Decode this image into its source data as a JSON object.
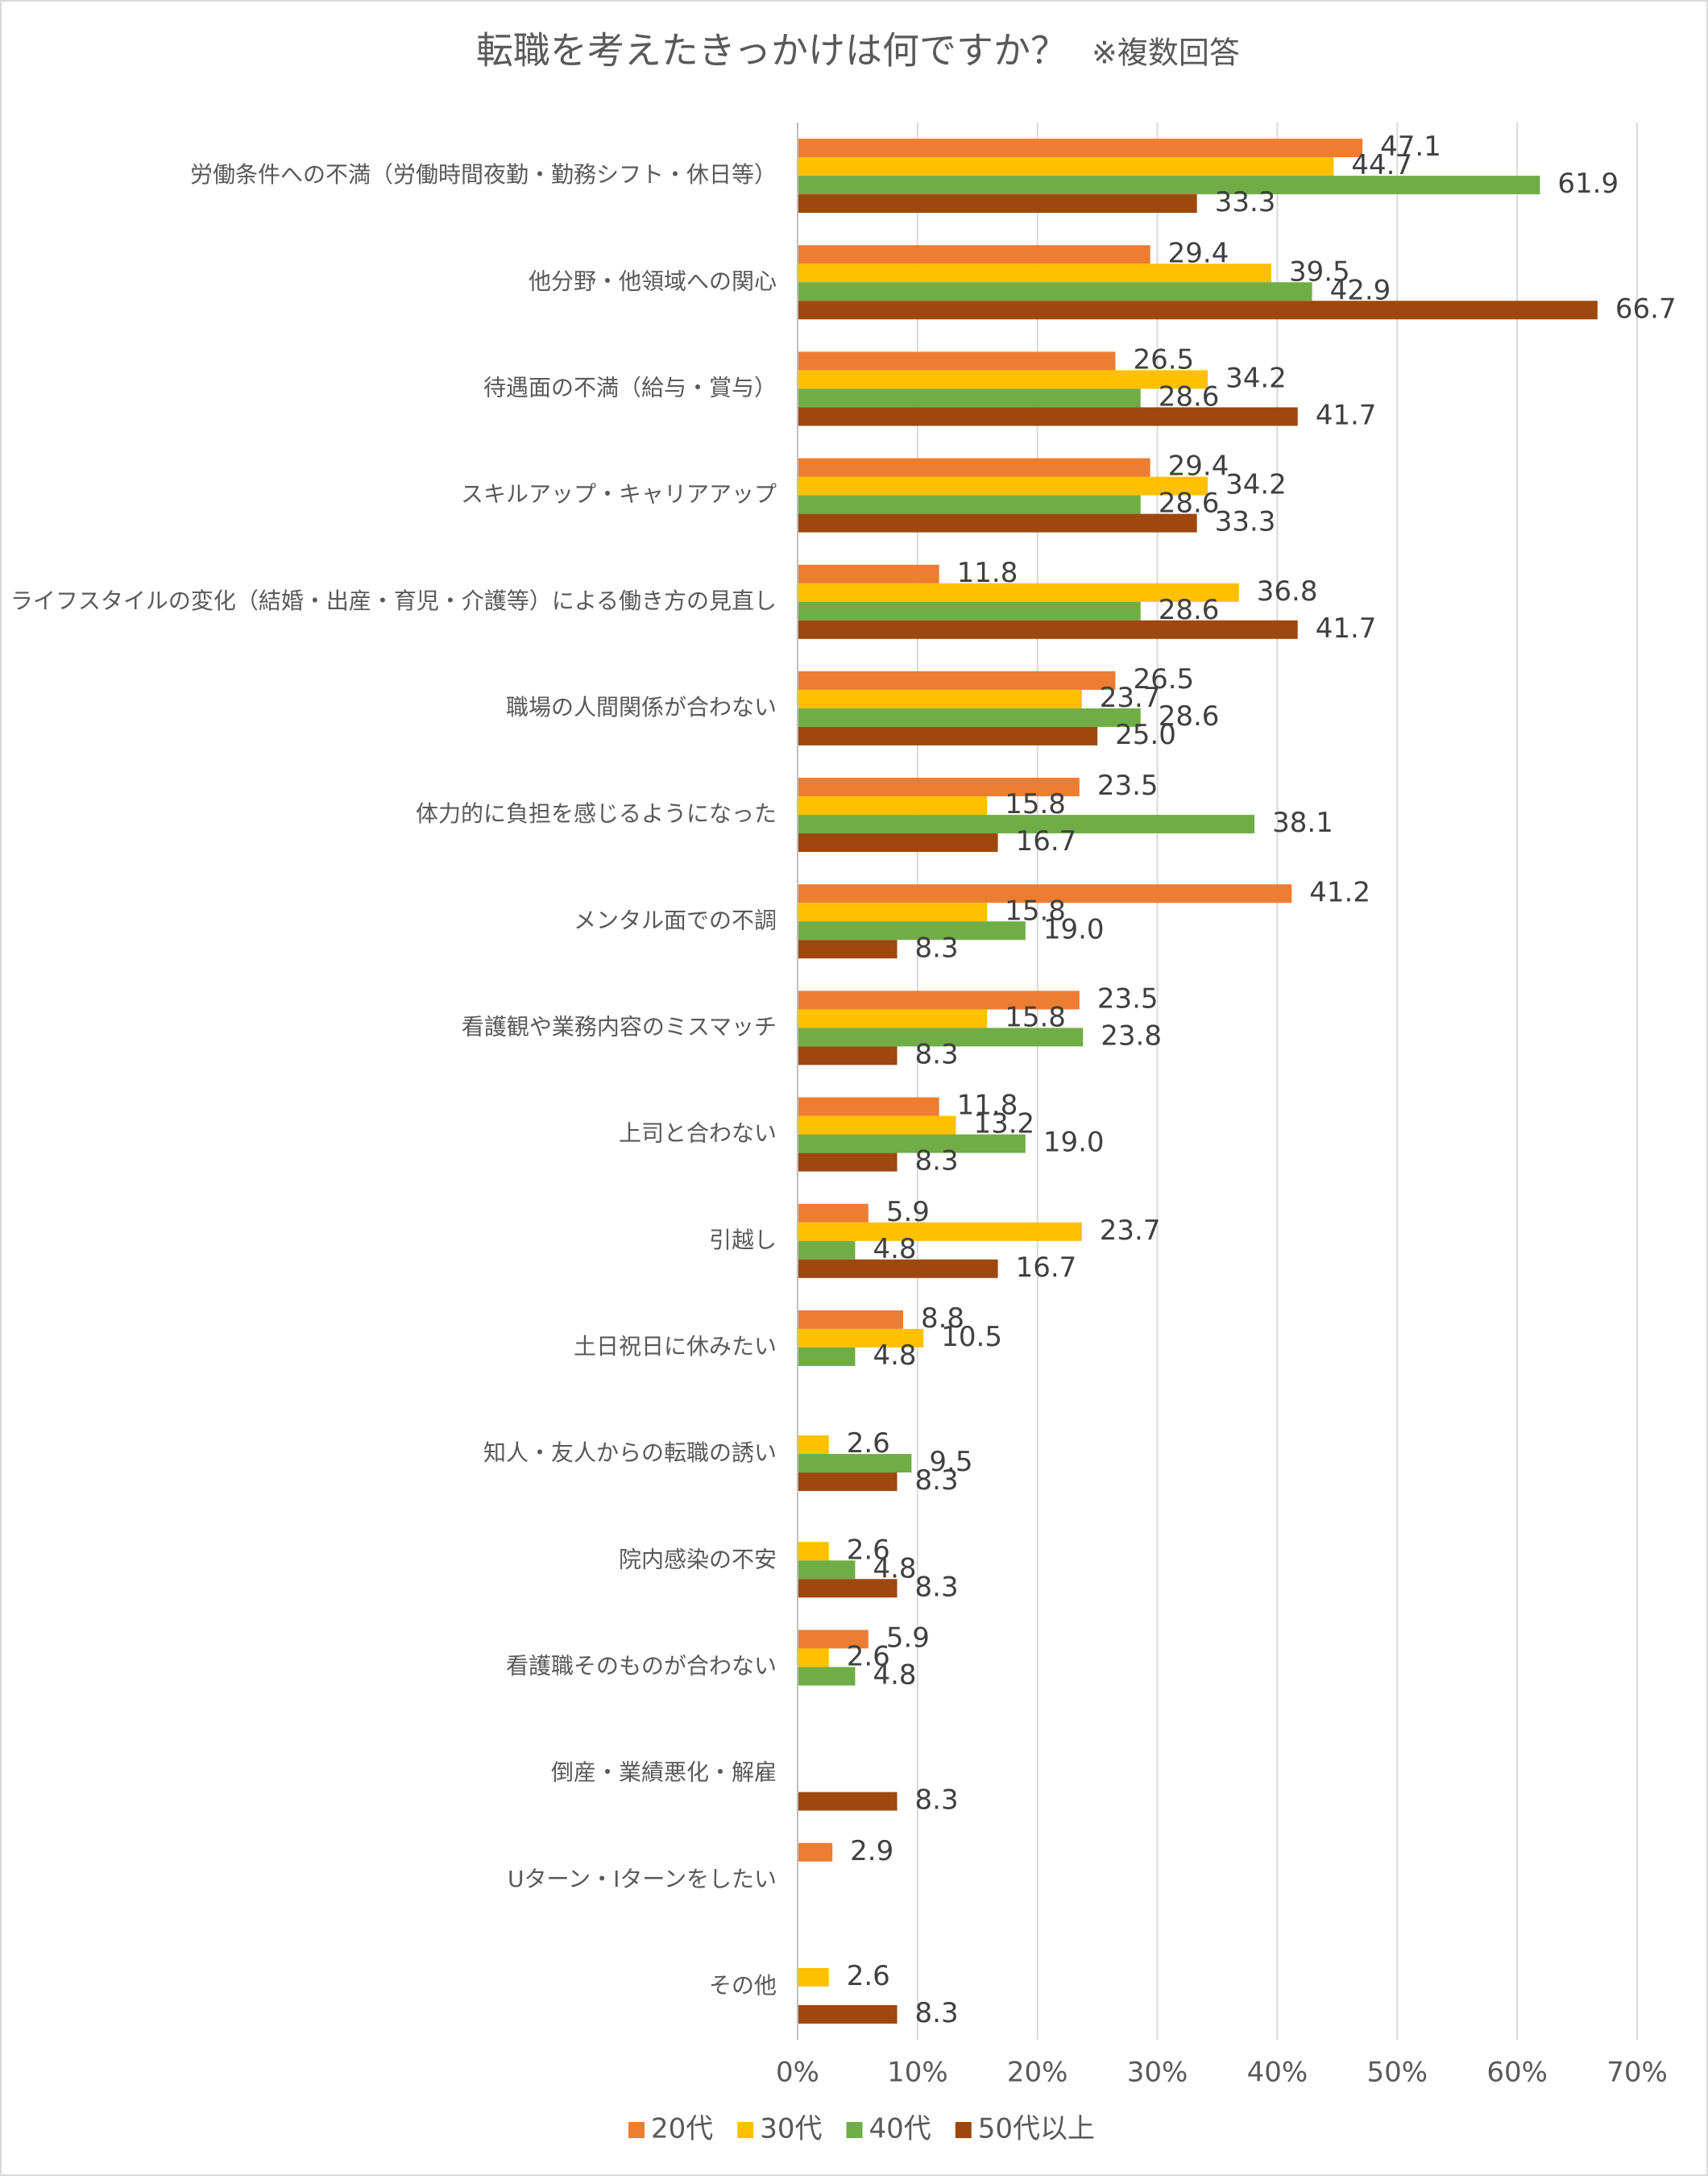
{
  "chart_data": {
    "type": "hbar",
    "title": "転職を考えたきっかけは何ですか？",
    "subtitle": "※複数回答",
    "categories": [
      "労働条件への不満（労働時間夜勤・勤務シフト・休日等）",
      "他分野・他領域への関心",
      "待遇面の不満（給与・賞与）",
      "スキルアップ・キャリアアップ",
      "ライフスタイルの変化（結婚・出産・育児・介護等）による働き方の見直し",
      "職場の人間関係が合わない",
      "体力的に負担を感じるようになった",
      "メンタル面での不調",
      "看護観や業務内容のミスマッチ",
      "上司と合わない",
      "引越し",
      "土日祝日に休みたい",
      "知人・友人からの転職の誘い",
      "院内感染の不安",
      "看護職そのものが合わない",
      "倒産・業績悪化・解雇",
      "Uターン・Iターンをしたい",
      "その他"
    ],
    "series": [
      {
        "name": "20代",
        "color": "#ED7D31",
        "values": [
          47.1,
          29.4,
          26.5,
          29.4,
          11.8,
          26.5,
          23.5,
          41.2,
          23.5,
          11.8,
          5.9,
          8.8,
          null,
          null,
          5.9,
          null,
          2.9,
          null
        ],
        "value_labels": [
          "47.1",
          "29.4",
          "26.5",
          "29.4",
          "11.8",
          "26.5",
          "23.5",
          "41.2",
          "23.5",
          "11.8",
          "5.9",
          "8.8",
          null,
          null,
          "5.9",
          null,
          "2.9",
          null
        ]
      },
      {
        "name": "30代",
        "color": "#FFC000",
        "values": [
          44.7,
          39.5,
          34.2,
          34.2,
          36.8,
          23.7,
          15.8,
          15.8,
          15.8,
          13.2,
          23.7,
          10.5,
          2.6,
          2.6,
          2.6,
          null,
          null,
          2.6
        ],
        "value_labels": [
          "44.7",
          "39.5",
          "34.2",
          "34.2",
          "36.8",
          "23.7",
          "15.8",
          "15.8",
          "15.8",
          "13.2",
          "23.7",
          "10.5",
          "2.6",
          "2.6",
          "2.6",
          null,
          null,
          "2.6"
        ]
      },
      {
        "name": "40代",
        "color": "#70AD47",
        "values": [
          61.9,
          42.9,
          28.6,
          28.6,
          28.6,
          28.6,
          38.1,
          19.0,
          23.8,
          19.0,
          4.8,
          4.8,
          9.5,
          4.8,
          4.8,
          null,
          null,
          null
        ],
        "value_labels": [
          "61.9",
          "42.9",
          "28.6",
          "28.6",
          "28.6",
          "28.6",
          "38.1",
          "19.0",
          "23.8",
          "19.0",
          "4.8",
          "4.8",
          "9.5",
          "4.8",
          "4.8",
          null,
          null,
          null
        ]
      },
      {
        "name": "50代以上",
        "color": "#9E480E",
        "values": [
          33.3,
          66.7,
          41.7,
          33.3,
          41.7,
          25.0,
          16.7,
          8.3,
          8.3,
          8.3,
          16.7,
          null,
          8.3,
          8.3,
          null,
          8.3,
          null,
          8.3
        ],
        "value_labels": [
          "33.3",
          "66.7",
          "41.7",
          "33.3",
          "41.7",
          "25.0",
          "16.7",
          "8.3",
          "8.3",
          "8.3",
          "16.7",
          null,
          "8.3",
          "8.3",
          null,
          "8.3",
          null,
          "8.3"
        ]
      }
    ],
    "xlim": [
      0,
      70
    ],
    "xticks": [
      {
        "value": 0,
        "label": "0%"
      },
      {
        "value": 10,
        "label": "10%"
      },
      {
        "value": 20,
        "label": "20%"
      },
      {
        "value": 30,
        "label": "30%"
      },
      {
        "value": 40,
        "label": "40%"
      },
      {
        "value": 50,
        "label": "50%"
      },
      {
        "value": 60,
        "label": "60%"
      },
      {
        "value": 70,
        "label": "70%"
      }
    ],
    "grid": true,
    "legend": "bottom"
  }
}
